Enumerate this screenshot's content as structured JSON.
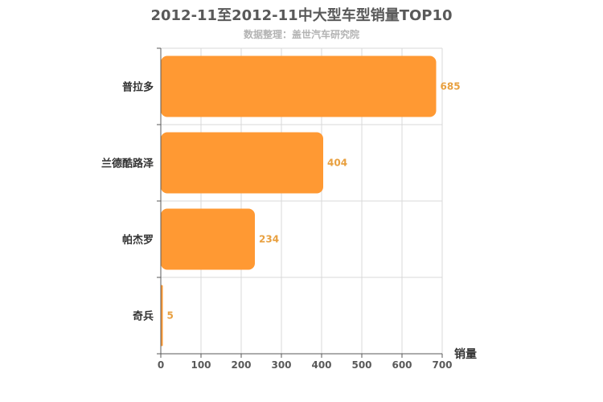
{
  "chart_data": {
    "type": "bar",
    "orientation": "horizontal",
    "title": "2012-11至2012-11中大型车型销量TOP10",
    "subtitle": "数据整理：盖世汽车研究院",
    "categories": [
      "普拉多",
      "兰德酷路泽",
      "帕杰罗",
      "奇兵"
    ],
    "values": [
      685,
      404,
      234,
      5
    ],
    "xlabel": "销量",
    "ylabel": "",
    "xlim": [
      0,
      700
    ],
    "xticks": [
      0,
      100,
      200,
      300,
      400,
      500,
      600,
      700
    ],
    "grid": true,
    "bar_color": "#ff9933",
    "label_color": "#e8a040"
  }
}
